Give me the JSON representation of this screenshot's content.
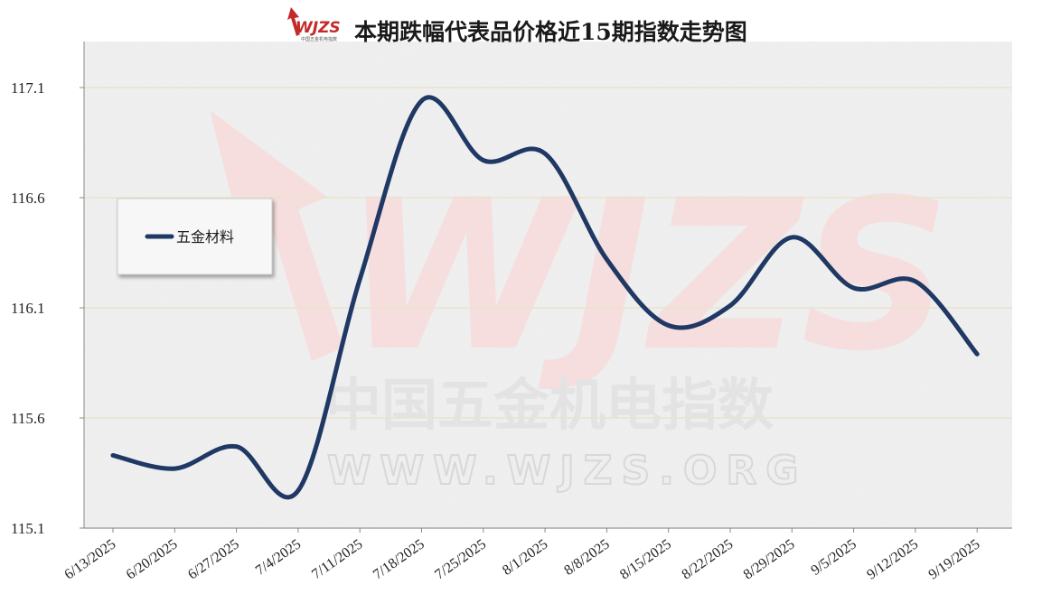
{
  "logo": {
    "text": "WJZS",
    "subtext": "中国五金机电指数"
  },
  "watermark": {
    "logo": "WJZS",
    "cn": "中国五金机电指数",
    "url": "WWW.WJZS.ORG"
  },
  "colors": {
    "series": "#1f3864",
    "grid": "#e9e4cc",
    "axis": "#888888",
    "logo": "#c42a2a"
  },
  "chart_data": {
    "type": "line",
    "title": "本期跌幅代表品价格近15期指数走势图",
    "categories": [
      "6/13/2025",
      "6/20/2025",
      "6/27/2025",
      "7/4/2025",
      "7/11/2025",
      "7/18/2025",
      "7/25/2025",
      "8/1/2025",
      "8/8/2025",
      "8/15/2025",
      "8/22/2025",
      "8/29/2025",
      "9/5/2025",
      "9/12/2025",
      "9/19/2025"
    ],
    "series": [
      {
        "name": "五金材料",
        "values": [
          115.43,
          115.37,
          115.47,
          115.27,
          116.23,
          117.04,
          116.77,
          116.8,
          116.32,
          116.02,
          116.11,
          116.42,
          116.19,
          116.22,
          115.89
        ]
      }
    ],
    "yticks": [
      "115.1",
      "115.6",
      "116.1",
      "116.6",
      "117.1"
    ],
    "ylim": [
      115.1,
      117.1
    ],
    "grid": true,
    "legend": "left"
  }
}
